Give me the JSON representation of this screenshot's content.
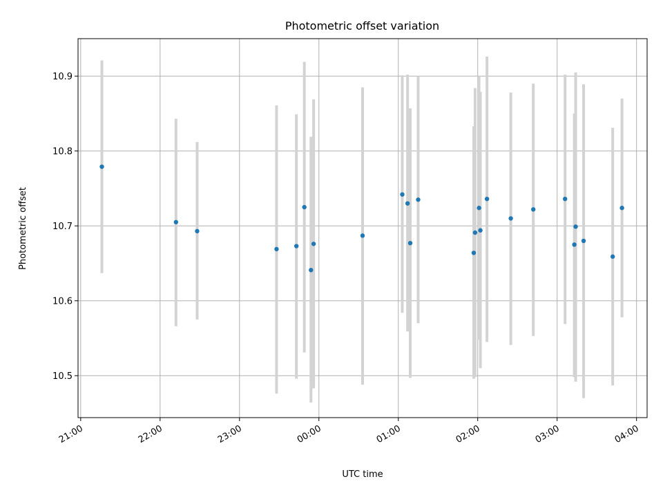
{
  "chart_data": {
    "type": "scatter",
    "title": "Photometric offset variation",
    "xlabel": "UTC time",
    "ylabel": "Photometric offset",
    "grid": true,
    "x_axis_type": "time",
    "xlim": [
      "20:58",
      "04:08"
    ],
    "ylim": [
      10.444,
      10.95
    ],
    "x_ticks": [
      "21:00",
      "22:00",
      "23:00",
      "00:00",
      "01:00",
      "02:00",
      "03:00",
      "04:00"
    ],
    "y_ticks": [
      10.5,
      10.6,
      10.7,
      10.8,
      10.9
    ],
    "colors": {
      "point": "#1f77b4",
      "errorbar": "#d3d3d3",
      "grid": "#b0b0b0"
    },
    "points": [
      {
        "x": "21:16",
        "y": 10.779,
        "yerr_low": 10.637,
        "yerr_high": 10.921
      },
      {
        "x": "22:12",
        "y": 10.705,
        "yerr_low": 10.566,
        "yerr_high": 10.843
      },
      {
        "x": "22:28",
        "y": 10.693,
        "yerr_low": 10.575,
        "yerr_high": 10.812
      },
      {
        "x": "23:28",
        "y": 10.669,
        "yerr_low": 10.476,
        "yerr_high": 10.861
      },
      {
        "x": "23:43",
        "y": 10.673,
        "yerr_low": 10.496,
        "yerr_high": 10.849
      },
      {
        "x": "23:49",
        "y": 10.725,
        "yerr_low": 10.531,
        "yerr_high": 10.919
      },
      {
        "x": "23:54",
        "y": 10.641,
        "yerr_low": 10.464,
        "yerr_high": 10.819
      },
      {
        "x": "23:56",
        "y": 10.676,
        "yerr_low": 10.483,
        "yerr_high": 10.869
      },
      {
        "x": "00:33",
        "y": 10.687,
        "yerr_low": 10.488,
        "yerr_high": 10.885
      },
      {
        "x": "01:03",
        "y": 10.742,
        "yerr_low": 10.584,
        "yerr_high": 10.901
      },
      {
        "x": "01:07",
        "y": 10.73,
        "yerr_low": 10.559,
        "yerr_high": 10.902
      },
      {
        "x": "01:09",
        "y": 10.677,
        "yerr_low": 10.497,
        "yerr_high": 10.857
      },
      {
        "x": "01:15",
        "y": 10.735,
        "yerr_low": 10.57,
        "yerr_high": 10.9
      },
      {
        "x": "01:57",
        "y": 10.664,
        "yerr_low": 10.496,
        "yerr_high": 10.833
      },
      {
        "x": "01:58",
        "y": 10.691,
        "yerr_low": 10.498,
        "yerr_high": 10.884
      },
      {
        "x": "02:01",
        "y": 10.724,
        "yerr_low": 10.548,
        "yerr_high": 10.9
      },
      {
        "x": "02:02",
        "y": 10.694,
        "yerr_low": 10.51,
        "yerr_high": 10.879
      },
      {
        "x": "02:07",
        "y": 10.736,
        "yerr_low": 10.545,
        "yerr_high": 10.926
      },
      {
        "x": "02:25",
        "y": 10.71,
        "yerr_low": 10.541,
        "yerr_high": 10.878
      },
      {
        "x": "02:42",
        "y": 10.722,
        "yerr_low": 10.553,
        "yerr_high": 10.89
      },
      {
        "x": "03:06",
        "y": 10.736,
        "yerr_low": 10.569,
        "yerr_high": 10.902
      },
      {
        "x": "03:13",
        "y": 10.675,
        "yerr_low": 10.498,
        "yerr_high": 10.85
      },
      {
        "x": "03:14",
        "y": 10.699,
        "yerr_low": 10.492,
        "yerr_high": 10.905
      },
      {
        "x": "03:20",
        "y": 10.68,
        "yerr_low": 10.47,
        "yerr_high": 10.889
      },
      {
        "x": "03:42",
        "y": 10.659,
        "yerr_low": 10.487,
        "yerr_high": 10.831
      },
      {
        "x": "03:49",
        "y": 10.724,
        "yerr_low": 10.578,
        "yerr_high": 10.87
      }
    ]
  }
}
